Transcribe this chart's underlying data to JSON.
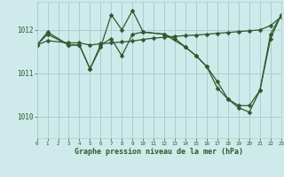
{
  "title": "Graphe pression niveau de la mer (hPa)",
  "bg_color": "#ceeaea",
  "grid_color": "#aacfcf",
  "line_color": "#2d5a2d",
  "xlim": [
    0,
    23
  ],
  "ylim": [
    1009.5,
    1012.65
  ],
  "yticks": [
    1010,
    1011,
    1012
  ],
  "xticks": [
    0,
    1,
    2,
    3,
    4,
    5,
    6,
    7,
    8,
    9,
    10,
    11,
    12,
    13,
    14,
    15,
    16,
    17,
    18,
    19,
    20,
    21,
    22,
    23
  ],
  "series1_x": [
    0,
    1,
    3,
    4,
    5,
    6,
    7,
    8,
    9,
    10,
    12,
    13,
    14,
    15,
    16,
    17,
    18,
    19,
    20,
    21,
    22,
    23
  ],
  "series1_y": [
    1011.65,
    1011.95,
    1011.65,
    1011.65,
    1011.1,
    1011.65,
    1011.8,
    1011.4,
    1011.9,
    1011.95,
    1011.9,
    1011.8,
    1011.6,
    1011.4,
    1011.15,
    1010.8,
    1010.4,
    1010.25,
    1010.25,
    1010.6,
    1011.9,
    1012.35
  ],
  "series2_x": [
    0,
    1,
    3,
    4,
    5,
    6,
    7,
    8,
    9,
    10,
    12,
    14,
    15,
    16,
    17,
    18,
    19,
    20,
    21,
    22,
    23
  ],
  "series2_y": [
    1011.65,
    1011.9,
    1011.65,
    1011.65,
    1011.1,
    1011.6,
    1012.35,
    1012.0,
    1012.45,
    1011.95,
    1011.9,
    1011.6,
    1011.4,
    1011.15,
    1010.65,
    1010.4,
    1010.2,
    1010.1,
    1010.6,
    1011.8,
    1012.35
  ],
  "series3_x": [
    0,
    1,
    3,
    4,
    5,
    6,
    7,
    8,
    9,
    10,
    11,
    12,
    13,
    14,
    15,
    16,
    17,
    18,
    19,
    20,
    21,
    22,
    23
  ],
  "series3_y": [
    1011.65,
    1011.75,
    1011.7,
    1011.7,
    1011.65,
    1011.68,
    1011.7,
    1011.72,
    1011.74,
    1011.78,
    1011.81,
    1011.83,
    1011.85,
    1011.87,
    1011.88,
    1011.9,
    1011.92,
    1011.94,
    1011.96,
    1011.98,
    1012.0,
    1012.1,
    1012.3
  ]
}
